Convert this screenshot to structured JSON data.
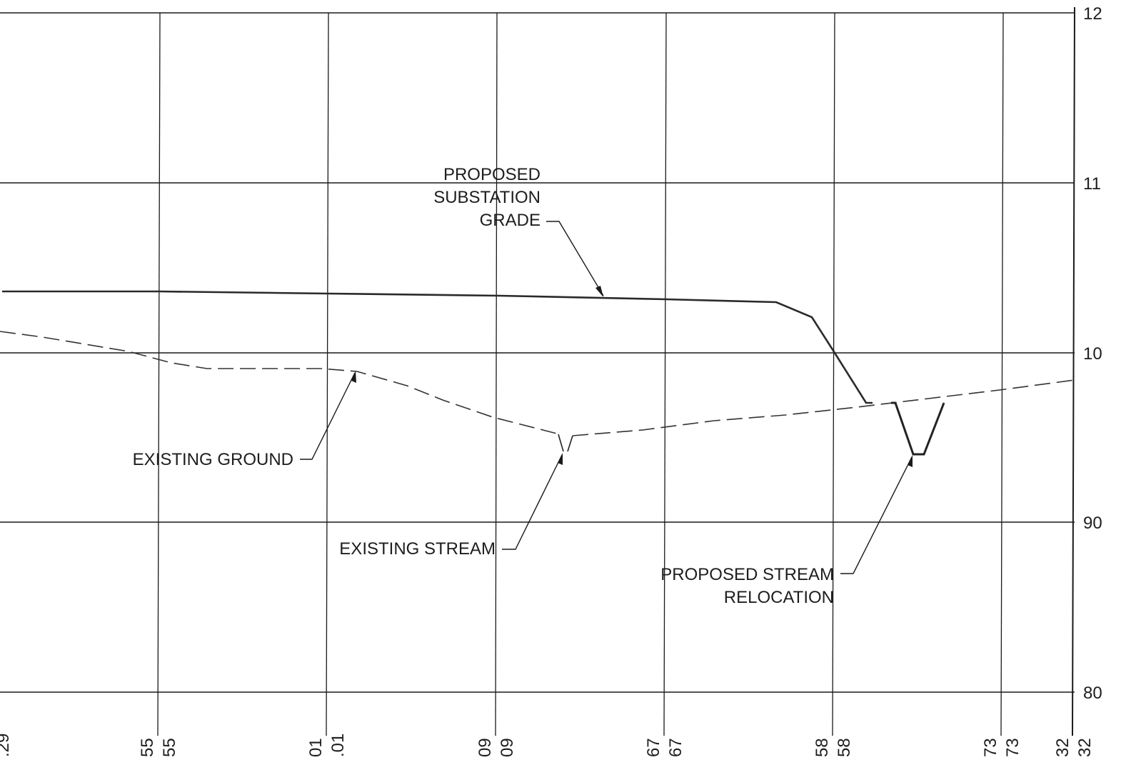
{
  "elevation_labels": [
    "12",
    "11",
    "10",
    "90",
    "80"
  ],
  "station_labels": [
    {
      "left": ".29",
      "right": ""
    },
    {
      "left": "55",
      "right": "55"
    },
    {
      "left": "01",
      "right": ".01"
    },
    {
      "left": "09",
      "right": "09"
    },
    {
      "left": "67",
      "right": "67"
    },
    {
      "left": "58",
      "right": "58"
    },
    {
      "left": "73",
      "right": "73"
    },
    {
      "left": "32",
      "right": "32"
    }
  ],
  "annotations": {
    "proposed_grade": [
      "PROPOSED",
      "SUBSTATION",
      "GRADE"
    ],
    "existing_ground": "EXISTING GROUND",
    "existing_stream": "EXISTING STREAM",
    "proposed_relocation": [
      "PROPOSED STREAM",
      "RELOCATION"
    ]
  }
}
